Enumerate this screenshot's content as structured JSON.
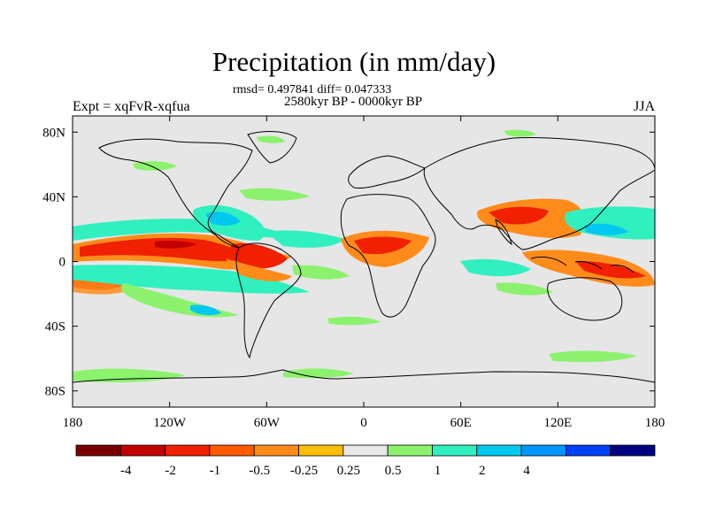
{
  "title": "Precipitation (in mm/day)",
  "stats": "rmsd= 0.497841 diff= 0.047333",
  "period": "2580kyr BP - 0000kyr BP",
  "experiment": "Expt = xqFvR-xqfua",
  "season": "JJA",
  "map": {
    "lon_range": [
      -180,
      180
    ],
    "lat_range": [
      -90,
      90
    ],
    "lon_ticks": [
      {
        "value": -180,
        "label": "180"
      },
      {
        "value": -120,
        "label": "120W"
      },
      {
        "value": -60,
        "label": "60W"
      },
      {
        "value": 0,
        "label": "0"
      },
      {
        "value": 60,
        "label": "60E"
      },
      {
        "value": 120,
        "label": "120E"
      },
      {
        "value": 180,
        "label": "180"
      }
    ],
    "lat_ticks": [
      {
        "value": 80,
        "label": "80N"
      },
      {
        "value": 40,
        "label": "40N"
      },
      {
        "value": 0,
        "label": "0"
      },
      {
        "value": -40,
        "label": "40S"
      },
      {
        "value": -80,
        "label": "80S"
      }
    ],
    "background_color": "#e6e6e6"
  },
  "colorbar": {
    "colors": [
      "#7a0000",
      "#c20000",
      "#f02000",
      "#ff5a00",
      "#ff8c1a",
      "#ffbe00",
      "#e8e8e8",
      "#8cf26e",
      "#30f0c0",
      "#00c8f0",
      "#0096ff",
      "#0040ff",
      "#000080"
    ],
    "labels": [
      "-4",
      "-2",
      "-1",
      "-0.5",
      "-0.25",
      "0.25",
      "0.5",
      "1",
      "2",
      "4"
    ]
  }
}
